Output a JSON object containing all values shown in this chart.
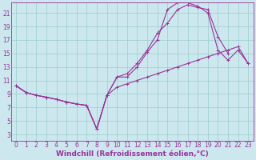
{
  "bg_color": "#cce8ee",
  "line_color": "#993399",
  "grid_color": "#99cccc",
  "xlabel": "Windchill (Refroidissement éolien,°C)",
  "xlabel_fontsize": 6.5,
  "tick_fontsize": 5.5,
  "xlim": [
    -0.5,
    23.5
  ],
  "ylim": [
    2,
    22.5
  ],
  "yticks": [
    3,
    5,
    7,
    9,
    11,
    13,
    15,
    17,
    19,
    21
  ],
  "xticks": [
    0,
    1,
    2,
    3,
    4,
    5,
    6,
    7,
    8,
    9,
    10,
    11,
    12,
    13,
    14,
    15,
    16,
    17,
    18,
    19,
    20,
    21,
    22,
    23
  ],
  "line1_x": [
    0,
    1,
    2,
    3,
    4,
    5,
    6,
    7,
    8,
    9,
    10,
    11,
    12,
    13,
    14,
    15,
    16,
    17,
    18,
    19,
    20,
    21,
    22,
    23
  ],
  "line1_y": [
    10.2,
    9.2,
    8.8,
    8.5,
    8.2,
    7.8,
    7.5,
    7.3,
    3.8,
    8.8,
    10.0,
    10.5,
    11.0,
    11.5,
    12.0,
    12.5,
    13.0,
    13.5,
    14.0,
    14.5,
    15.0,
    15.5,
    16.0,
    13.5
  ],
  "line2_x": [
    0,
    1,
    2,
    3,
    4,
    5,
    6,
    7,
    8,
    9,
    10,
    11,
    12,
    13,
    14,
    15,
    16,
    17,
    18,
    19,
    20,
    21
  ],
  "line2_y": [
    10.2,
    9.2,
    8.8,
    8.5,
    8.2,
    7.8,
    7.5,
    7.3,
    3.8,
    8.8,
    11.5,
    12.0,
    13.5,
    15.5,
    18.0,
    19.5,
    21.5,
    22.2,
    21.8,
    21.5,
    17.5,
    15.0
  ],
  "line3_x": [
    0,
    1,
    2,
    3,
    4,
    5,
    6,
    7,
    8,
    9,
    10,
    11,
    12,
    13,
    14,
    15,
    16,
    17,
    18,
    19,
    20,
    21,
    22,
    23
  ],
  "line3_y": [
    10.2,
    9.2,
    8.8,
    8.5,
    8.2,
    7.8,
    7.5,
    7.3,
    3.8,
    8.8,
    11.5,
    11.5,
    13.0,
    15.2,
    17.0,
    21.5,
    22.5,
    22.5,
    22.0,
    21.0,
    15.5,
    14.0,
    15.5,
    13.5
  ]
}
